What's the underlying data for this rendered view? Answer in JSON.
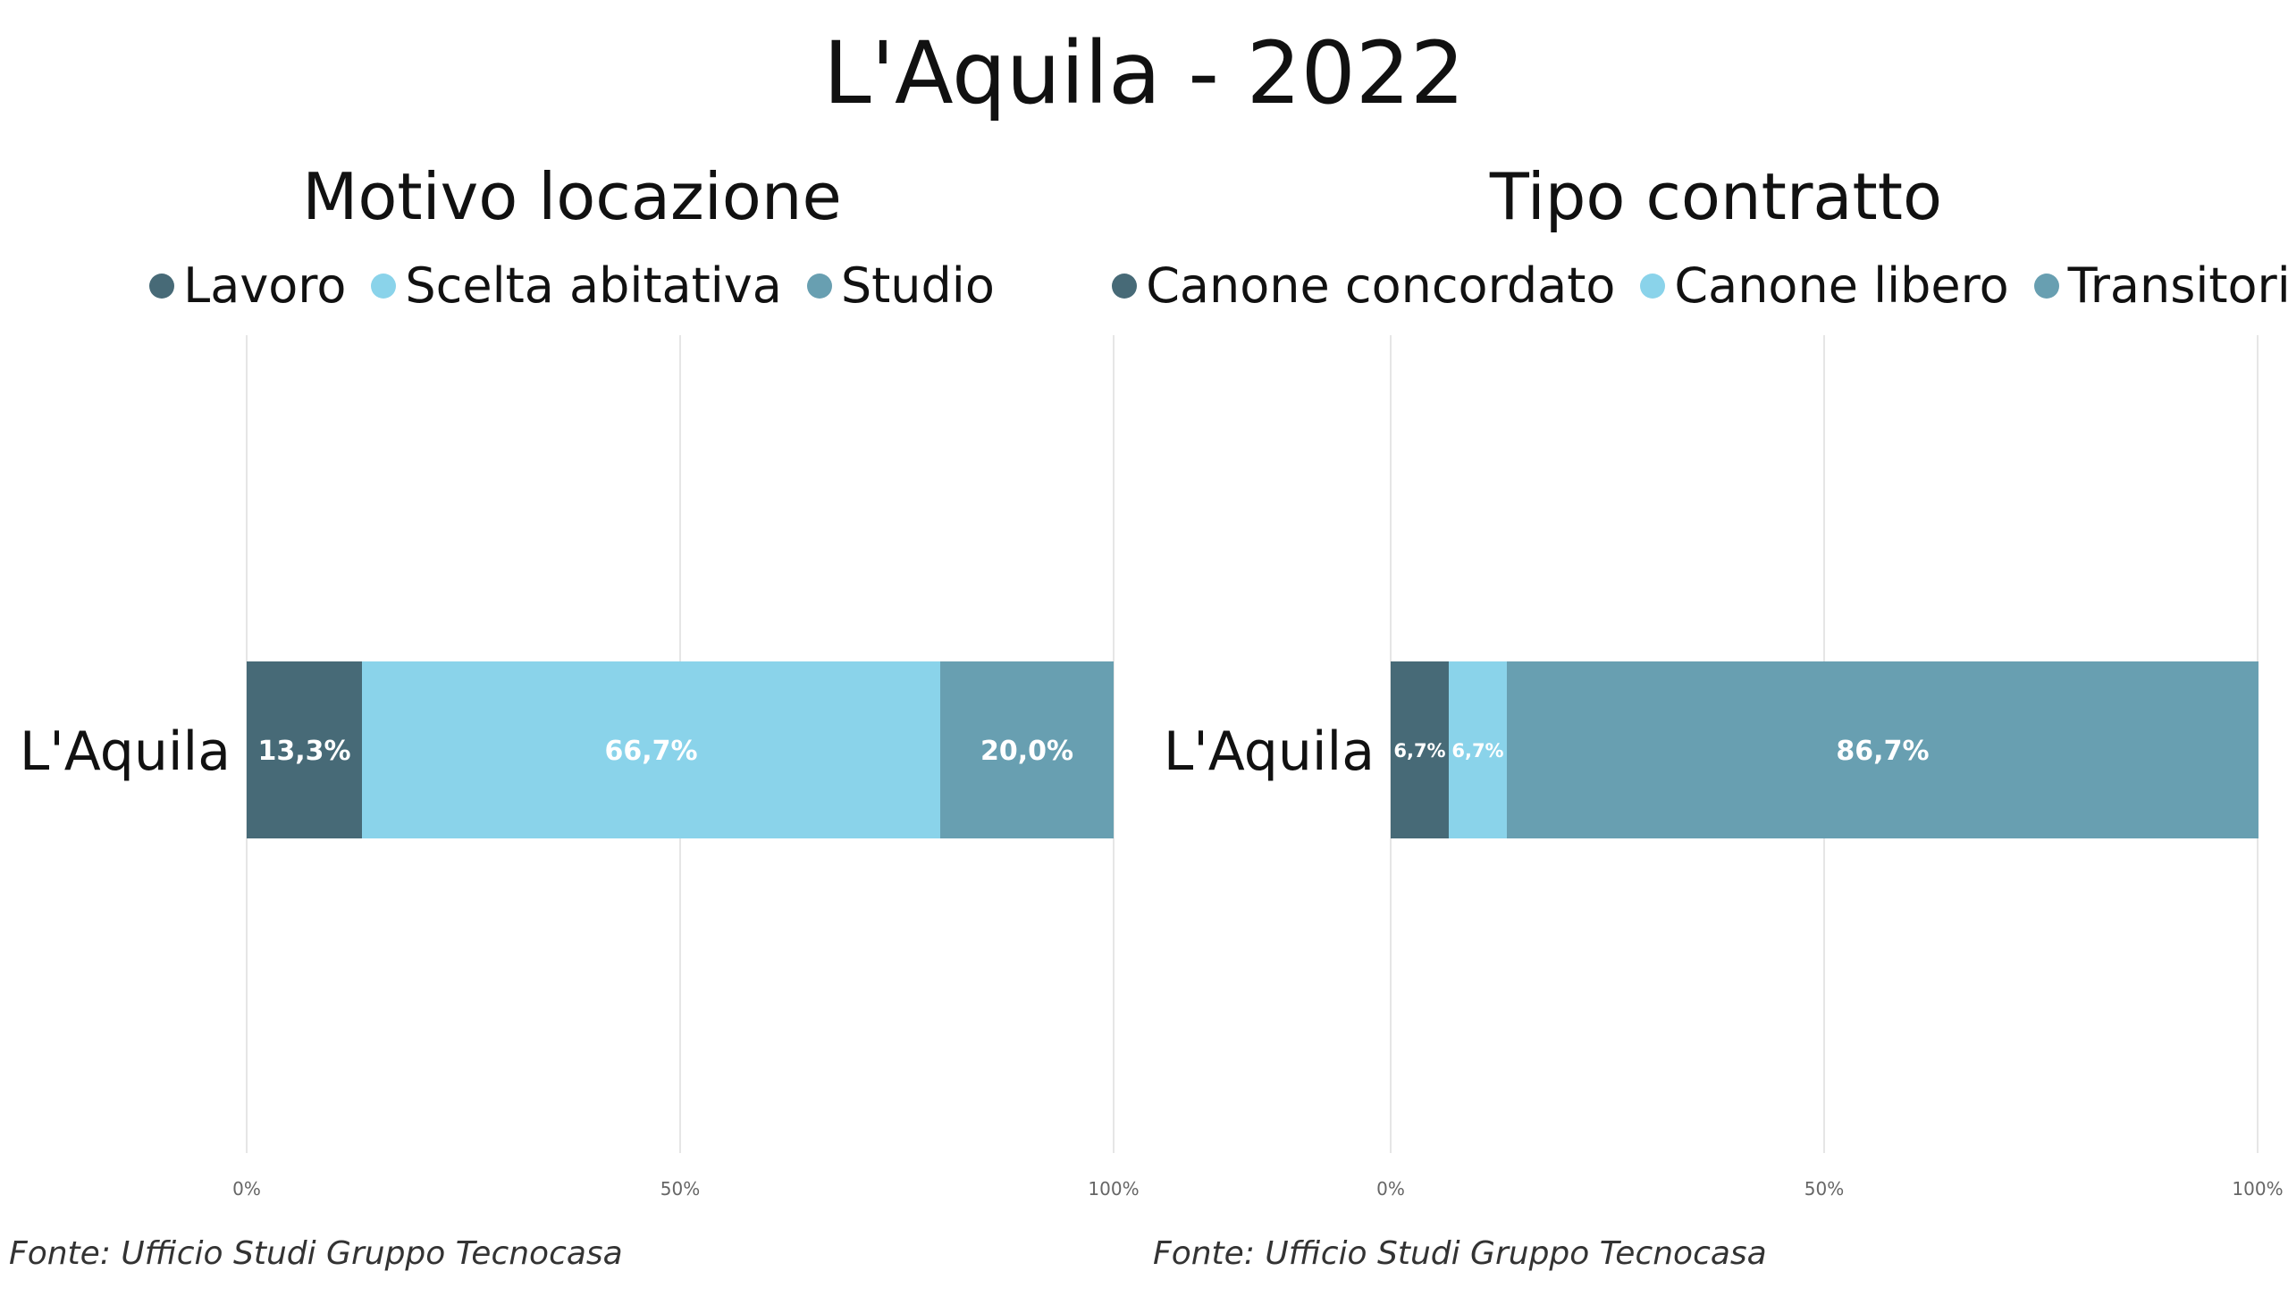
{
  "title": "L'Aquila - 2022",
  "colors": {
    "dark": "#476A77",
    "light": "#8AD3EA",
    "mid": "#689FB1",
    "grid": "#E6E6E6",
    "tick": "#666666"
  },
  "chart_data": [
    {
      "type": "bar",
      "orientation": "horizontal",
      "stacked": true,
      "normalized": true,
      "title": "Motivo locazione",
      "categories": [
        "L'Aquila"
      ],
      "series": [
        {
          "name": "Lavoro",
          "values": [
            13.3
          ],
          "label": "13,3%",
          "color": "#476A77"
        },
        {
          "name": "Scelta abitativa",
          "values": [
            66.7
          ],
          "label": "66,7%",
          "color": "#8AD3EA"
        },
        {
          "name": "Studio",
          "values": [
            20.0
          ],
          "label": "20,0%",
          "color": "#689FB1"
        }
      ],
      "xlim": [
        0,
        100
      ],
      "xticks": [
        "0%",
        "50%",
        "100%"
      ],
      "grid": true,
      "legend": "top",
      "source": "Fonte: Ufficio Studi Gruppo Tecnocasa"
    },
    {
      "type": "bar",
      "orientation": "horizontal",
      "stacked": true,
      "normalized": true,
      "title": "Tipo contratto",
      "categories": [
        "L'Aquila"
      ],
      "series": [
        {
          "name": "Canone concordato",
          "values": [
            6.7
          ],
          "label": "6,7%",
          "color": "#476A77"
        },
        {
          "name": "Canone libero",
          "values": [
            6.7
          ],
          "label": "6,7%",
          "color": "#8AD3EA"
        },
        {
          "name": "Transitorio",
          "values": [
            86.7
          ],
          "label": "86,7%",
          "color": "#689FB1"
        }
      ],
      "xlim": [
        0,
        100
      ],
      "xticks": [
        "0%",
        "50%",
        "100%"
      ],
      "grid": true,
      "legend": "top",
      "source": "Fonte: Ufficio Studi Gruppo Tecnocasa"
    }
  ]
}
